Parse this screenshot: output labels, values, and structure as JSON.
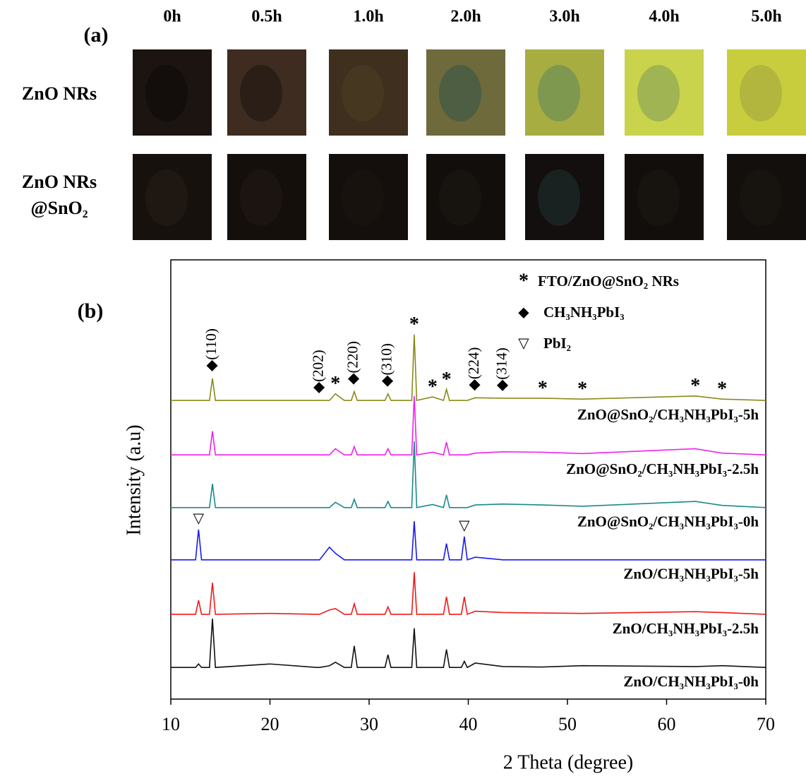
{
  "panel_a": {
    "label": "(a)",
    "times": [
      "0h",
      "0.5h",
      "1.0h",
      "2.0h",
      "3.0h",
      "4.0h",
      "5.0h"
    ],
    "rows": [
      [
        "ZnO NRs"
      ],
      [
        "ZnO NRs",
        "@SnO₂"
      ]
    ]
  },
  "chart_data": {
    "type": "line",
    "panel_label": "(b)",
    "xlabel": "2 Theta (degree)",
    "ylabel": "Intensity (a.u)",
    "xlim": [
      10,
      70
    ],
    "xticks": [
      10,
      20,
      30,
      40,
      50,
      60,
      70
    ],
    "ylim": [
      0,
      100
    ],
    "grid": false,
    "x": [
      10,
      12.5,
      12.8,
      13.1,
      13.9,
      14.2,
      14.5,
      20,
      24.7,
      25.0,
      26.0,
      26.6,
      27.5,
      28.2,
      28.5,
      28.8,
      31.6,
      31.9,
      32.2,
      34.3,
      34.55,
      34.8,
      36.4,
      37.5,
      37.8,
      38.1,
      39.3,
      39.6,
      39.9,
      40.7,
      43.5,
      47.5,
      51.5,
      62.9,
      65.6,
      70
    ],
    "series": [
      {
        "name": "ZnO@SnO₂/CH₃NH₃PbI₃-5h",
        "color": "#8a8a1a",
        "values": [
          68,
          68,
          68,
          68,
          68,
          73,
          68,
          68,
          68,
          68,
          68,
          69.5,
          68,
          68,
          70,
          68,
          68,
          69.5,
          68,
          68,
          83,
          68,
          68.8,
          68,
          70.5,
          68,
          68,
          68,
          68,
          68.6,
          68.5,
          68.5,
          68.3,
          69,
          68.3,
          68
        ]
      },
      {
        "name": "ZnO@SnO₂/CH₃NH₃PbI₃-2.5h",
        "color": "#ee22ee",
        "values": [
          55.6,
          55.6,
          55.6,
          55.6,
          55.6,
          61,
          55.6,
          55.6,
          55.6,
          55.6,
          55.6,
          57,
          55.6,
          55.6,
          57.5,
          55.6,
          55.6,
          57,
          55.6,
          55.6,
          69,
          55.6,
          56.2,
          55.6,
          58.5,
          55.6,
          55.6,
          55.6,
          55.6,
          56,
          56.3,
          56.2,
          55.9,
          57,
          56,
          55.6
        ]
      },
      {
        "name": "ZnO@SnO₂/CH₃NH₃PbI₃-0h",
        "color": "#1a8a8a",
        "values": [
          43.6,
          43.6,
          43.6,
          43.6,
          43.6,
          49,
          43.6,
          43.6,
          43.6,
          43.6,
          43.6,
          44.8,
          43.6,
          43.6,
          45.5,
          43.6,
          43.6,
          45,
          43.6,
          43.6,
          58.7,
          43.6,
          44.3,
          43.6,
          46.5,
          43.6,
          43.6,
          43.6,
          43.6,
          44.2,
          44.4,
          44.2,
          43.9,
          45,
          44.1,
          43.6
        ]
      },
      {
        "name": "ZnO/CH₃NH₃PbI₃-5h",
        "color": "#1a1aee",
        "values": [
          31.7,
          31.7,
          38.6,
          31.7,
          31.7,
          31.7,
          31.7,
          31.7,
          31.7,
          31.7,
          34.6,
          33.2,
          31.7,
          31.7,
          31.7,
          31.7,
          31.7,
          31.7,
          31.7,
          31.7,
          40.5,
          31.7,
          31.7,
          31.7,
          35.4,
          31.7,
          31.7,
          37,
          31.7,
          32.3,
          31.7,
          31.7,
          31.7,
          31.7,
          31.7,
          31.7
        ]
      },
      {
        "name": "ZnO/CH₃NH₃PbI₃-2.5h",
        "color": "#ee1a1a",
        "values": [
          19.3,
          19.3,
          22.5,
          19.3,
          19.3,
          26.5,
          19.3,
          19.5,
          19.3,
          19.3,
          20.3,
          20.6,
          19.3,
          19.3,
          21.7,
          19.3,
          19.3,
          21,
          19.3,
          19.3,
          28.9,
          19.3,
          19.3,
          19.3,
          23.3,
          19.3,
          19.3,
          23.3,
          19.3,
          20,
          19.7,
          19.6,
          19.5,
          19.9,
          19.7,
          19.3
        ]
      },
      {
        "name": "ZnO/CH₃NH₃PbI₃-0h",
        "color": "#111111",
        "values": [
          7.2,
          7.2,
          8,
          7.2,
          7.2,
          18.3,
          7.2,
          8,
          7.2,
          7.2,
          7.6,
          8.4,
          7.2,
          7.2,
          12.1,
          7.2,
          7.2,
          10.1,
          7.2,
          7.2,
          16.1,
          7.2,
          7.2,
          7.2,
          11.3,
          7.2,
          7.2,
          8.6,
          7.2,
          8.2,
          7.4,
          7.3,
          7.6,
          7.4,
          7.6,
          7.2
        ]
      }
    ],
    "peak_labels": [
      {
        "label": "◆(110)",
        "x": 14.2
      },
      {
        "label": "◆(202)",
        "x": 25.0
      },
      {
        "label": "◆(220)",
        "x": 28.5
      },
      {
        "label": "◆(310)",
        "x": 31.9
      },
      {
        "label": "◆(224)",
        "x": 40.7
      },
      {
        "label": "◆(314)",
        "x": 43.5
      }
    ],
    "stars": [
      {
        "symbol": "*",
        "x": 26.6
      },
      {
        "symbol": "*",
        "x": 34.55
      },
      {
        "symbol": "*",
        "x": 36.4
      },
      {
        "symbol": "*",
        "x": 37.8
      },
      {
        "symbol": "*",
        "x": 47.5
      },
      {
        "symbol": "*",
        "x": 51.5
      },
      {
        "symbol": "*",
        "x": 62.9
      },
      {
        "symbol": "*",
        "x": 65.6
      }
    ],
    "triangles": [
      {
        "symbol": "▽",
        "x": 12.8
      },
      {
        "symbol": "▽",
        "x": 39.6
      }
    ],
    "legend": [
      {
        "symbol": "*",
        "text": "FTO/ZnO@SnO₂ NRs"
      },
      {
        "symbol": "◆",
        "text": "CH₃NH₃PbI₃"
      },
      {
        "symbol": "▽",
        "text": "PbI₂"
      }
    ]
  }
}
